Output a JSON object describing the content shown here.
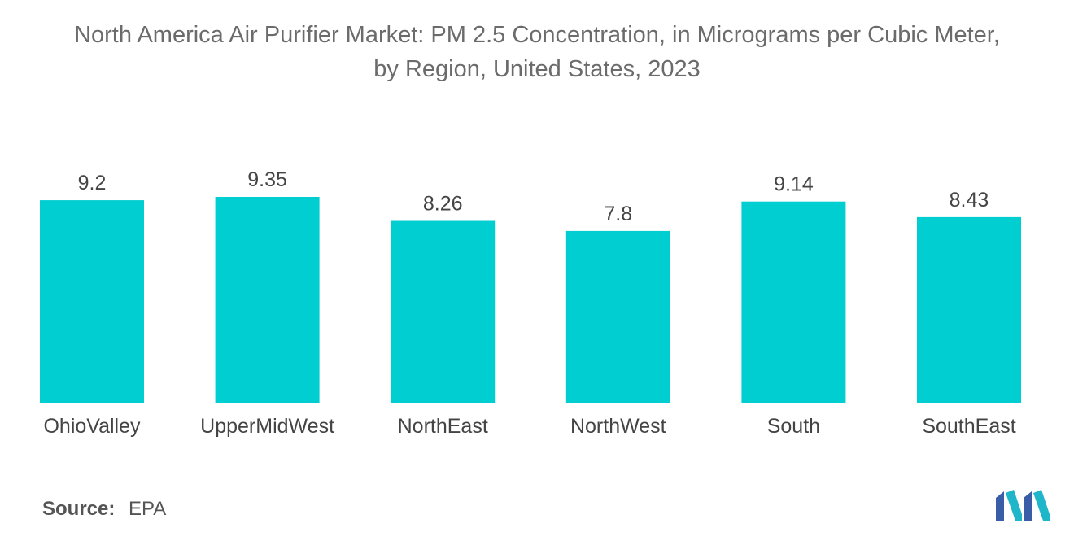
{
  "title": {
    "line1": "North America Air Purifier Market: PM 2.5 Concentration, in Micrograms per Cubic Meter,",
    "line2": "by Region, United States, 2023"
  },
  "source": {
    "label": "Source:",
    "value": "EPA"
  },
  "logo": {
    "icon": "mordor-intelligence-logo",
    "colors": [
      "#3a5da8",
      "#1fb6c9"
    ]
  },
  "colors": {
    "bar": "#00ced1",
    "text": "#444444"
  },
  "chart_data": {
    "type": "bar",
    "title": "North America Air Purifier Market: PM 2.5 Concentration, in Micrograms per Cubic Meter, by Region, United States, 2023",
    "categories": [
      "OhioValley",
      "UpperMidWest",
      "NorthEast",
      "NorthWest",
      "South",
      "SouthEast"
    ],
    "values": [
      9.2,
      9.35,
      8.26,
      7.8,
      9.14,
      8.43
    ],
    "value_labels": [
      "9.2",
      "9.35",
      "8.26",
      "7.8",
      "9.14",
      "8.43"
    ],
    "xlabel": "",
    "ylabel": "",
    "ylim": [
      0,
      9.35
    ],
    "grid": false,
    "legend": "none",
    "data_labels": true
  }
}
